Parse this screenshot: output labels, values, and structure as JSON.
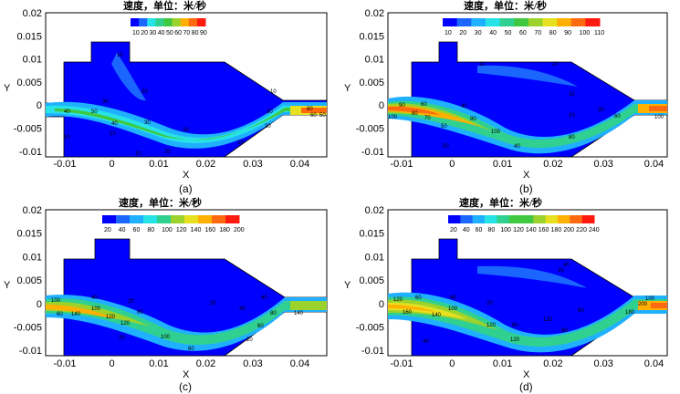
{
  "colorbar_title": "速度，单位：米/秒",
  "x_label": "X",
  "y_label": "Y",
  "x_ticks": [
    "-0.01",
    "0",
    "0.01",
    "0.02",
    "0.03",
    "0.04"
  ],
  "y_ticks": [
    "0.02",
    "0.015",
    "0.01",
    "0.005",
    "0",
    "-0.005",
    "-0.01"
  ],
  "palette": [
    "#0000ff",
    "#1a66ff",
    "#1fb0ff",
    "#27e2e6",
    "#30d090",
    "#40c840",
    "#9bd22b",
    "#e6e020",
    "#ffb000",
    "#ff6a10",
    "#ff1a10"
  ],
  "panels": [
    {
      "caption": "(a)",
      "colorbar_values": [
        "10",
        "20",
        "30",
        "40",
        "50",
        "60",
        "70",
        "80",
        "90"
      ],
      "contour_labels": [
        "10",
        "20",
        "30",
        "40",
        "50",
        "10",
        "10",
        "20",
        "30",
        "20",
        "10",
        "10",
        "10",
        "20",
        "30",
        "40",
        "80",
        "60",
        "50"
      ]
    },
    {
      "caption": "(b)",
      "colorbar_values": [
        "10",
        "20",
        "30",
        "40",
        "50",
        "60",
        "70",
        "80",
        "90",
        "100",
        "110"
      ],
      "contour_labels": [
        "10",
        "20",
        "90",
        "100",
        "60",
        "80",
        "70",
        "40",
        "50",
        "10",
        "20",
        "30",
        "60",
        "100",
        "50",
        "40",
        "80",
        "100",
        "90"
      ]
    },
    {
      "caption": "(c)",
      "colorbar_values": [
        "20",
        "40",
        "60",
        "80",
        "100",
        "120",
        "140",
        "160",
        "180",
        "200"
      ],
      "contour_labels": [
        "100",
        "60",
        "140",
        "40",
        "20",
        "80",
        "120",
        "100",
        "20",
        "60",
        "20",
        "40",
        "60",
        "80",
        "20",
        "40",
        "140",
        "100",
        "120"
      ]
    },
    {
      "caption": "(d)",
      "colorbar_values": [
        "20",
        "40",
        "60",
        "80",
        "100",
        "120",
        "140",
        "160",
        "180",
        "200",
        "220",
        "240"
      ],
      "contour_labels": [
        "120",
        "60",
        "160",
        "140",
        "40",
        "100",
        "120",
        "80",
        "20",
        "40",
        "120",
        "20",
        "40",
        "60",
        "120",
        "80",
        "180",
        "200",
        "100"
      ]
    }
  ]
}
